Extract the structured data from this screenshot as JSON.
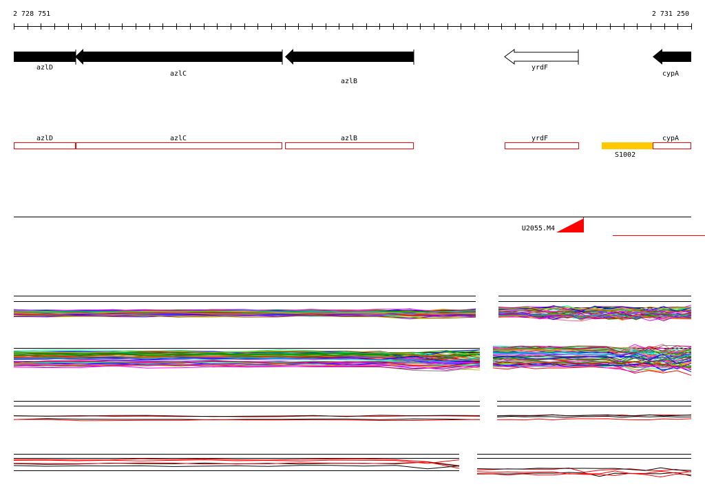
{
  "coords": {
    "start": "2 728 751",
    "end": "2 731 250"
  },
  "genes": [
    {
      "name": "azlD",
      "filled": true
    },
    {
      "name": "azlC",
      "filled": true
    },
    {
      "name": "azlB",
      "filled": true
    },
    {
      "name": "yrdF",
      "filled": false
    },
    {
      "name": "cypA",
      "filled": true
    }
  ],
  "cds_boxes": [
    {
      "name": "azlD"
    },
    {
      "name": "azlC"
    },
    {
      "name": "azlB"
    },
    {
      "name": "yrdF"
    },
    {
      "name": "cypA"
    }
  ],
  "feature": {
    "name": "S1002",
    "color": "#ffc800"
  },
  "marker": {
    "name": "U2055.M4",
    "color": "#ff0000"
  },
  "colors": {
    "gene_fill": "#000000",
    "box_stroke": "#ff0000",
    "axis": "#000000"
  },
  "tracks": [
    {
      "id": "track-1",
      "style": "multicolor"
    },
    {
      "id": "track-2",
      "style": "multicolor"
    },
    {
      "id": "track-3",
      "style": "red-black"
    },
    {
      "id": "track-4",
      "style": "red-black"
    }
  ]
}
